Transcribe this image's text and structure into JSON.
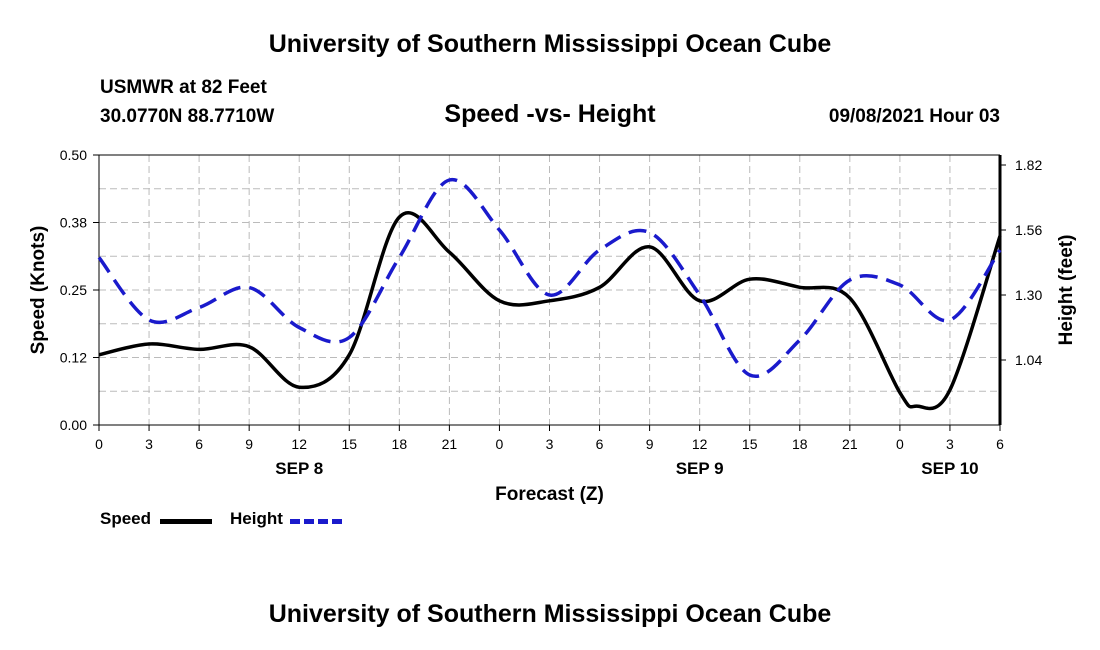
{
  "header": {
    "title_top": "University of Southern Mississippi Ocean Cube",
    "station": "USMWR at 82 Feet",
    "coords": "30.0770N  88.7710W",
    "datetime": "09/08/2021 Hour 03",
    "title_bottom": "University of Southern Mississippi Ocean Cube"
  },
  "legend": {
    "speed_label": "Speed",
    "height_label": "Height"
  },
  "colors": {
    "speed": "#000000",
    "height": "#1a1acc",
    "grid": "#bbbbbb"
  },
  "chart_data": {
    "type": "line",
    "title": "Speed -vs- Height",
    "xlabel": "Forecast (Z)",
    "ylabel": "Speed (Knots)",
    "y2label": "Height (feet)",
    "x_unit": "hours since 09/08/2021 00Z",
    "xlim": [
      0,
      54
    ],
    "ylim": [
      0,
      0.5
    ],
    "y2lim": [
      0.78,
      1.86
    ],
    "x_ticks": [
      0,
      3,
      6,
      9,
      12,
      15,
      18,
      21,
      24,
      27,
      30,
      33,
      36,
      39,
      42,
      45,
      48,
      51,
      54
    ],
    "x_tick_labels": [
      "0",
      "3",
      "6",
      "9",
      "12",
      "15",
      "18",
      "21",
      "0",
      "3",
      "6",
      "9",
      "12",
      "15",
      "18",
      "21",
      "0",
      "3",
      "6"
    ],
    "date_labels": [
      {
        "label": "SEP 8",
        "x": 12
      },
      {
        "label": "SEP 9",
        "x": 36
      },
      {
        "label": "SEP 10",
        "x": 51
      }
    ],
    "y_ticks": [
      0.0,
      0.125,
      0.25,
      0.375,
      0.5
    ],
    "y_tick_labels": [
      "0.00",
      "0.12",
      "0.25",
      "0.38",
      "0.50"
    ],
    "y2_ticks": [
      1.04,
      1.3,
      1.56,
      1.82
    ],
    "y2_tick_labels": [
      "1.04",
      "1.30",
      "1.56",
      "1.82"
    ],
    "grid": true,
    "legend_position": "bottom-left",
    "series": [
      {
        "name": "Speed",
        "axis": "left",
        "style": "solid",
        "points": [
          [
            0,
            0.13
          ],
          [
            3,
            0.15
          ],
          [
            6,
            0.14
          ],
          [
            9,
            0.145
          ],
          [
            12,
            0.07
          ],
          [
            15,
            0.13
          ],
          [
            18,
            0.385
          ],
          [
            21,
            0.32
          ],
          [
            24,
            0.23
          ],
          [
            27,
            0.23
          ],
          [
            30,
            0.255
          ],
          [
            33,
            0.33
          ],
          [
            36,
            0.23
          ],
          [
            39,
            0.27
          ],
          [
            42,
            0.255
          ],
          [
            45,
            0.235
          ],
          [
            48,
            0.06
          ],
          [
            49,
            0.035
          ],
          [
            51,
            0.065
          ],
          [
            54,
            0.35
          ]
        ]
      },
      {
        "name": "Height",
        "axis": "right",
        "style": "dashed",
        "points": [
          [
            0,
            1.45
          ],
          [
            3,
            1.2
          ],
          [
            6,
            1.25
          ],
          [
            9,
            1.33
          ],
          [
            12,
            1.17
          ],
          [
            15,
            1.13
          ],
          [
            18,
            1.45
          ],
          [
            21,
            1.76
          ],
          [
            24,
            1.56
          ],
          [
            27,
            1.3
          ],
          [
            30,
            1.48
          ],
          [
            33,
            1.55
          ],
          [
            36,
            1.3
          ],
          [
            39,
            0.98
          ],
          [
            42,
            1.12
          ],
          [
            45,
            1.36
          ],
          [
            48,
            1.34
          ],
          [
            51,
            1.2
          ],
          [
            54,
            1.48
          ]
        ]
      }
    ]
  }
}
